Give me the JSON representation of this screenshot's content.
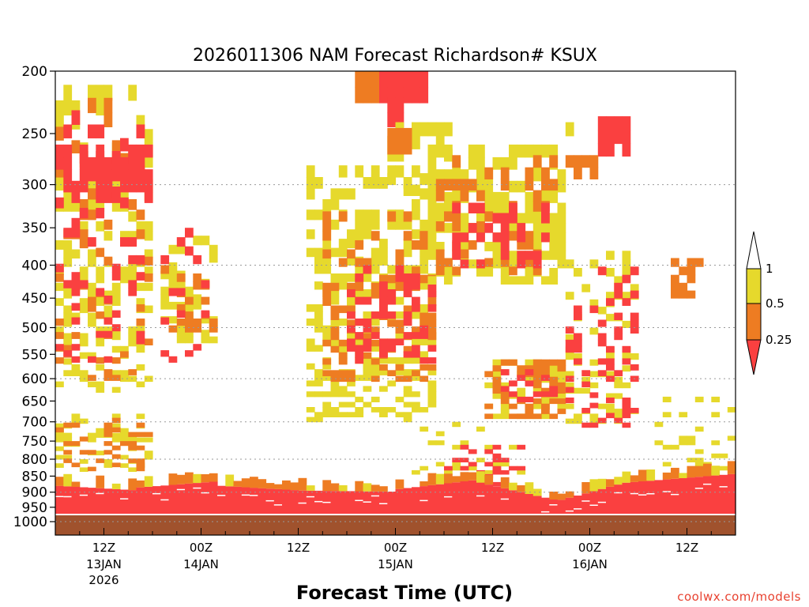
{
  "chart_data": {
    "type": "heatmap",
    "title": "2026011306 NAM Forecast Richardson# KSUX",
    "xlabel": "Forecast Time (UTC)",
    "ylabel": "",
    "y_axis": {
      "scale": "pressure",
      "reversed": true,
      "ylim": [
        200,
        1000
      ],
      "ticks": [
        200,
        250,
        300,
        350,
        400,
        450,
        500,
        550,
        600,
        650,
        700,
        750,
        800,
        850,
        900,
        950,
        1000
      ],
      "tick_labels": [
        "200",
        "250",
        "300",
        "350",
        "400",
        "450",
        "500",
        "550",
        "600",
        "650",
        "700",
        "750",
        "800",
        "850",
        "900",
        "950",
        "1000"
      ]
    },
    "x_axis": {
      "range_hours": [
        0,
        84
      ],
      "ticks": [
        {
          "hour": 6,
          "label": "12Z",
          "day": "13JAN",
          "year": "2026"
        },
        {
          "hour": 18,
          "label": "00Z",
          "day": "14JAN",
          "year": ""
        },
        {
          "hour": 30,
          "label": "12Z",
          "day": "",
          "year": ""
        },
        {
          "hour": 42,
          "label": "00Z",
          "day": "15JAN",
          "year": ""
        },
        {
          "hour": 54,
          "label": "12Z",
          "day": "",
          "year": ""
        },
        {
          "hour": 66,
          "label": "00Z",
          "day": "16JAN",
          "year": ""
        },
        {
          "hour": 78,
          "label": "12Z",
          "day": "",
          "year": ""
        }
      ]
    },
    "grid": true,
    "legend": {
      "placement": "right",
      "levels": [
        {
          "label": "1",
          "color": "#ffffff"
        },
        {
          "label": "0.5",
          "color": "#e6d92c"
        },
        {
          "label": "0.25",
          "color": "#ee7c22"
        },
        {
          "label": "",
          "color": "#fa4040"
        }
      ]
    },
    "colors": {
      "ri_low": "#fa4040",
      "ri_mid": "#ee7c22",
      "ri_high": "#e6d92c",
      "below_ground": "#a0522d"
    },
    "regions": [
      {
        "class": "high",
        "x": [
          0,
          12
        ],
        "p": [
          210,
          620
        ],
        "density": 0.35
      },
      {
        "class": "mid",
        "x": [
          0,
          12
        ],
        "p": [
          220,
          600
        ],
        "density": 0.15
      },
      {
        "class": "low",
        "x": [
          0,
          12
        ],
        "p": [
          260,
          310
        ],
        "density": 0.7
      },
      {
        "class": "low",
        "x": [
          0,
          11
        ],
        "p": [
          230,
          560
        ],
        "density": 0.18
      },
      {
        "class": "high",
        "x": [
          0,
          12
        ],
        "p": [
          680,
          830
        ],
        "density": 0.3
      },
      {
        "class": "mid",
        "x": [
          0,
          12
        ],
        "p": [
          690,
          830
        ],
        "density": 0.2
      },
      {
        "class": "high",
        "x": [
          13,
          20
        ],
        "p": [
          360,
          520
        ],
        "density": 0.45
      },
      {
        "class": "mid",
        "x": [
          13,
          20
        ],
        "p": [
          400,
          500
        ],
        "density": 0.3
      },
      {
        "class": "low",
        "x": [
          13,
          20
        ],
        "p": [
          350,
          560
        ],
        "density": 0.12
      },
      {
        "class": "high",
        "x": [
          31,
          47
        ],
        "p": [
          280,
          700
        ],
        "density": 0.45
      },
      {
        "class": "mid",
        "x": [
          33,
          47
        ],
        "p": [
          330,
          600
        ],
        "density": 0.3
      },
      {
        "class": "low",
        "x": [
          36,
          47
        ],
        "p": [
          400,
          560
        ],
        "density": 0.35
      },
      {
        "class": "mid",
        "x": [
          37,
          40
        ],
        "p": [
          200,
          215
        ],
        "density": 1.0
      },
      {
        "class": "low",
        "x": [
          40,
          46
        ],
        "p": [
          200,
          220
        ],
        "density": 1.0
      },
      {
        "class": "low",
        "x": [
          41,
          43
        ],
        "p": [
          220,
          240
        ],
        "density": 1.0
      },
      {
        "class": "high",
        "x": [
          41,
          49
        ],
        "p": [
          240,
          310
        ],
        "density": 0.6
      },
      {
        "class": "mid",
        "x": [
          41,
          44
        ],
        "p": [
          245,
          265
        ],
        "density": 0.8
      },
      {
        "class": "high",
        "x": [
          46,
          63
        ],
        "p": [
          260,
          420
        ],
        "density": 0.55
      },
      {
        "class": "mid",
        "x": [
          47,
          62
        ],
        "p": [
          270,
          410
        ],
        "density": 0.3
      },
      {
        "class": "low",
        "x": [
          49,
          61
        ],
        "p": [
          320,
          400
        ],
        "density": 0.4
      },
      {
        "class": "high",
        "x": [
          53,
          63
        ],
        "p": [
          560,
          690
        ],
        "density": 0.45
      },
      {
        "class": "mid",
        "x": [
          53,
          63
        ],
        "p": [
          560,
          690
        ],
        "density": 0.3
      },
      {
        "class": "low",
        "x": [
          55,
          62
        ],
        "p": [
          580,
          660
        ],
        "density": 0.25
      },
      {
        "class": "high",
        "x": [
          63,
          71
        ],
        "p": [
          240,
          250
        ],
        "density": 0.35
      },
      {
        "class": "low",
        "x": [
          67,
          71
        ],
        "p": [
          235,
          260
        ],
        "density": 0.8
      },
      {
        "class": "mid",
        "x": [
          63,
          67
        ],
        "p": [
          270,
          290
        ],
        "density": 0.7
      },
      {
        "class": "high",
        "x": [
          63,
          72
        ],
        "p": [
          380,
          700
        ],
        "density": 0.3
      },
      {
        "class": "low",
        "x": [
          63,
          72
        ],
        "p": [
          390,
          720
        ],
        "density": 0.22
      },
      {
        "class": "mid",
        "x": [
          76,
          80
        ],
        "p": [
          390,
          440
        ],
        "density": 0.4
      },
      {
        "class": "high",
        "x": [
          74,
          84
        ],
        "p": [
          640,
          830
        ],
        "density": 0.15
      },
      {
        "class": "high",
        "x": [
          44,
          58
        ],
        "p": [
          700,
          840
        ],
        "density": 0.15
      },
      {
        "class": "low",
        "x": [
          48,
          58
        ],
        "p": [
          760,
          870
        ],
        "density": 0.3
      }
    ]
  },
  "credit": "coolwx.com/models"
}
